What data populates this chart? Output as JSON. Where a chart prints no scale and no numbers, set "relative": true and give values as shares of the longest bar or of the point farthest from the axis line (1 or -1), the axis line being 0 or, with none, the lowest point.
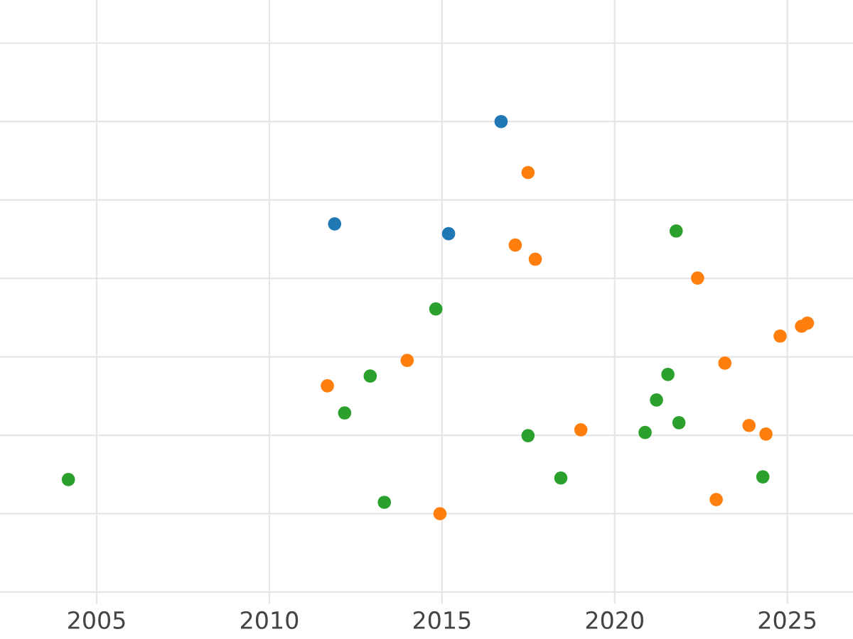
{
  "chart_data": {
    "type": "scatter",
    "relative": true,
    "xlim": [
      2002.2,
      2026.9
    ],
    "xticks": [
      2005,
      2010,
      2015,
      2020,
      2025
    ],
    "grid": true,
    "tick_labels": "x",
    "marker": "circle",
    "legend": false,
    "series": [
      {
        "color": "#1f77b4",
        "x": [
          2011.89,
          2015.19,
          2016.71
        ],
        "values": [
          0.739,
          0.714,
          1.0
        ]
      },
      {
        "color": "#ff7f0e",
        "x": [
          2011.68,
          2013.99,
          2014.94,
          2017.12,
          2017.49,
          2017.7,
          2019.02,
          2022.4,
          2022.94,
          2023.19,
          2023.89,
          2024.38,
          2024.79,
          2025.41,
          2025.58
        ],
        "values": [
          0.326,
          0.391,
          0,
          0.685,
          0.87,
          0.649,
          0.214,
          0.601,
          0.036,
          0.384,
          0.225,
          0.203,
          0.453,
          0.478,
          0.486
        ]
      },
      {
        "color": "#2ca02c",
        "x": [
          2004.18,
          2012.18,
          2012.92,
          2013.33,
          2014.82,
          2017.49,
          2018.44,
          2020.88,
          2021.21,
          2021.54,
          2021.78,
          2021.86,
          2024.29
        ],
        "values": [
          0.087,
          0.257,
          0.351,
          0.029,
          0.522,
          0.199,
          0.091,
          0.207,
          0.29,
          0.355,
          0.721,
          0.232,
          0.094
        ]
      }
    ]
  }
}
